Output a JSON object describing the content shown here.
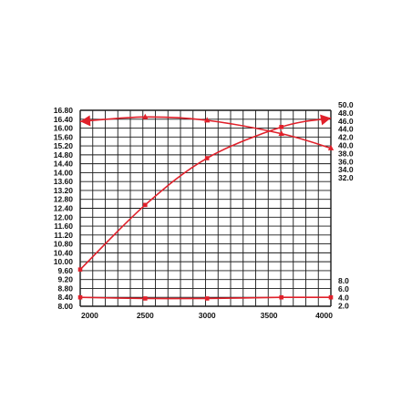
{
  "chart_data": {
    "type": "line",
    "title": "",
    "xlabel": "",
    "ylabel": "",
    "grid": true,
    "xlim": [
      1975,
      4000
    ],
    "x_ticks": [
      "2000",
      "2500",
      "3000",
      "3500",
      "4000"
    ],
    "left_axis": {
      "ylim": [
        8.0,
        16.8
      ],
      "ticks": [
        "16.80",
        "16.40",
        "16.00",
        "15.60",
        "15.20",
        "14.80",
        "14.40",
        "14.00",
        "13.60",
        "13.20",
        "12.80",
        "12.40",
        "12.00",
        "11.60",
        "11.20",
        "10.80",
        "10.40",
        "10.00",
        "9.60",
        "9.20",
        "8.80",
        "8.40",
        "8.00"
      ]
    },
    "right_axis": {
      "upper_ticks": [
        "50.0",
        "48.0",
        "46.0",
        "44.0",
        "42.0",
        "40.0",
        "38.0",
        "36.0",
        "34.0",
        "32.0"
      ],
      "lower_ticks": [
        "8.0",
        "6.0",
        "4.0",
        "2.0"
      ]
    },
    "series": [
      {
        "marker": "square",
        "arrow": "end",
        "x": [
          1975,
          2500,
          3000,
          3600,
          4000
        ],
        "y": [
          9.65,
          12.55,
          14.65,
          16.05,
          16.45
        ]
      },
      {
        "marker": "triangle",
        "arrow": "start",
        "x": [
          1975,
          2500,
          3000,
          3600,
          4000
        ],
        "y": [
          16.3,
          16.5,
          16.35,
          15.75,
          15.1
        ]
      },
      {
        "marker": "square",
        "arrow": "none",
        "x": [
          1975,
          2500,
          3000,
          3600,
          4000
        ],
        "y": [
          8.4,
          8.35,
          8.35,
          8.4,
          8.4
        ]
      }
    ],
    "colors": {
      "series": "#e0202a",
      "grid": "#1a1a1a"
    }
  }
}
